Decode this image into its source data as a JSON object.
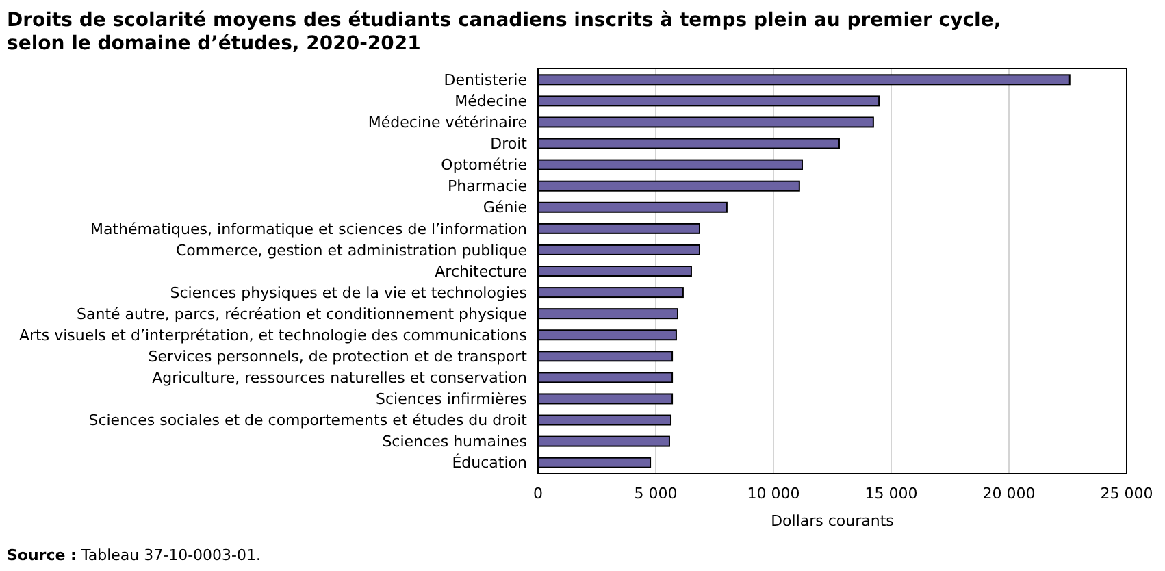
{
  "chart_data": {
    "type": "bar",
    "orientation": "horizontal",
    "title": "Droits de scolarité moyens des étudiants canadiens inscrits à temps plein au premier cycle, selon le domaine d’études, 2020-2021",
    "xlabel": "Dollars courants",
    "categories": [
      "Dentisterie",
      "Médecine",
      "Médecine vétérinaire",
      "Droit",
      "Optométrie",
      "Pharmacie",
      "Génie",
      "Mathématiques, informatique et sciences de l’information",
      "Commerce, gestion et administration publique",
      "Architecture",
      "Sciences physiques et de la vie et technologies",
      "Santé autre, parcs, récréation et conditionnement physique",
      "Arts visuels et d’interprétation, et technologie des communications",
      "Services personnels, de protection et de transport",
      "Agriculture, ressources naturelles et conservation",
      "Sciences infirmières",
      "Sciences sociales et de comportements et études du droit",
      "Sciences humaines",
      "Éducation"
    ],
    "values": [
      22580,
      14480,
      14240,
      12790,
      11220,
      11100,
      8020,
      6860,
      6860,
      6510,
      6160,
      5930,
      5870,
      5700,
      5700,
      5700,
      5640,
      5580,
      4770
    ],
    "color": "#6b62a3",
    "xlim": [
      0,
      25000
    ],
    "xticks": [
      {
        "value": 0,
        "label": "0"
      },
      {
        "value": 5000,
        "label": "5 000"
      },
      {
        "value": 10000,
        "label": "10 000"
      },
      {
        "value": 15000,
        "label": "15 000"
      },
      {
        "value": 20000,
        "label": "20 000"
      },
      {
        "value": 25000,
        "label": "25 000"
      }
    ],
    "grid": "x",
    "annotations": [
      "Source : Tableau 37-10-0003-01."
    ]
  }
}
